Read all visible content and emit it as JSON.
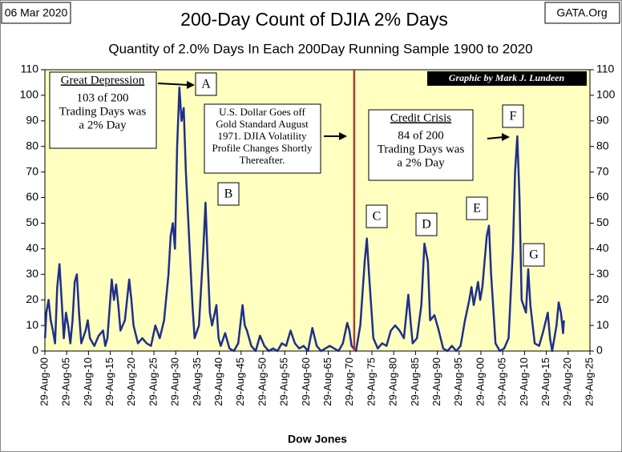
{
  "chart_data": {
    "type": "line",
    "title": "200-Day Count of  DJIA 2% Days",
    "subtitle": "Quantity of 2.0% Days In Each 200Day Running Sample 1900 to 2020",
    "date_label": "06 Mar 2020",
    "source": "GATA.Org",
    "credit": "Graphic by Mark J. Lundeen",
    "x_label": "Dow Jones",
    "color": "#1f2f8a",
    "background": "#ffffc0",
    "grid": false,
    "vline": {
      "value": 1971.6,
      "color": "#b03a2e"
    },
    "ylim": [
      0,
      110
    ],
    "yticks": [
      0,
      10,
      20,
      30,
      40,
      50,
      60,
      70,
      80,
      90,
      100,
      110
    ],
    "xlim": [
      1900.66,
      2025.66
    ],
    "xticks": [
      {
        "value": 1900.66,
        "label": "29-Aug-00"
      },
      {
        "value": 1905.66,
        "label": "29-Aug-05"
      },
      {
        "value": 1910.66,
        "label": "29-Aug-10"
      },
      {
        "value": 1915.66,
        "label": "29-Aug-15"
      },
      {
        "value": 1920.66,
        "label": "29-Aug-20"
      },
      {
        "value": 1925.66,
        "label": "29-Aug-25"
      },
      {
        "value": 1930.66,
        "label": "29-Aug-30"
      },
      {
        "value": 1935.66,
        "label": "29-Aug-35"
      },
      {
        "value": 1940.66,
        "label": "29-Aug-40"
      },
      {
        "value": 1945.66,
        "label": "29-Aug-45"
      },
      {
        "value": 1950.66,
        "label": "29-Aug-50"
      },
      {
        "value": 1955.66,
        "label": "29-Aug-55"
      },
      {
        "value": 1960.66,
        "label": "29-Aug-60"
      },
      {
        "value": 1965.66,
        "label": "29-Aug-65"
      },
      {
        "value": 1970.66,
        "label": "29-Aug-70"
      },
      {
        "value": 1975.66,
        "label": "29-Aug-75"
      },
      {
        "value": 1980.66,
        "label": "29-Aug-80"
      },
      {
        "value": 1985.66,
        "label": "29-Aug-85"
      },
      {
        "value": 1990.66,
        "label": "29-Aug-90"
      },
      {
        "value": 1995.66,
        "label": "29-Aug-95"
      },
      {
        "value": 2000.66,
        "label": "29-Aug-00"
      },
      {
        "value": 2005.66,
        "label": "29-Aug-05"
      },
      {
        "value": 2010.66,
        "label": "29-Aug-10"
      },
      {
        "value": 2015.66,
        "label": "29-Aug-15"
      },
      {
        "value": 2020.66,
        "label": "29-Aug-20"
      },
      {
        "value": 2025.66,
        "label": "29-Aug-25"
      }
    ],
    "x": [
      1900.7,
      1901,
      1901.5,
      1902,
      1902.5,
      1903,
      1903.5,
      1904,
      1904.5,
      1905,
      1905.5,
      1906,
      1906.5,
      1907,
      1907.5,
      1908,
      1908.5,
      1909,
      1910,
      1910.5,
      1911,
      1912,
      1913,
      1914,
      1914.5,
      1915,
      1916,
      1916.5,
      1917,
      1917.5,
      1918,
      1919,
      1920,
      1920.5,
      1921,
      1922,
      1923,
      1924,
      1925,
      1926,
      1927,
      1928,
      1929,
      1929.5,
      1930,
      1930.5,
      1931,
      1931.5,
      1932,
      1932.5,
      1933,
      1934,
      1934.5,
      1935,
      1936,
      1937,
      1937.5,
      1938,
      1938.5,
      1939,
      1940,
      1940.5,
      1941,
      1942,
      1943,
      1944,
      1945,
      1946,
      1946.5,
      1947,
      1948,
      1949,
      1950,
      1951,
      1952,
      1953,
      1954,
      1955,
      1956,
      1957,
      1958,
      1959,
      1960,
      1961,
      1962,
      1963,
      1964,
      1965,
      1966,
      1967,
      1968,
      1969,
      1970,
      1970.5,
      1971,
      1972,
      1973,
      1974,
      1974.5,
      1975,
      1976,
      1977,
      1978,
      1979,
      1980,
      1981,
      1982,
      1983,
      1984,
      1984.5,
      1985,
      1986,
      1987,
      1987.7,
      1988.5,
      1989,
      1990,
      1991,
      1992,
      1993,
      1994,
      1995,
      1996,
      1997,
      1998,
      1998.5,
      1999,
      2000,
      2000.5,
      2001,
      2002,
      2002.5,
      2003,
      2004,
      2005,
      2006,
      2007,
      2008,
      2008.5,
      2009,
      2009.5,
      2010,
      2011,
      2011.5,
      2012,
      2013,
      2014,
      2015,
      2016,
      2016.5,
      2017,
      2018,
      2018.5,
      2019,
      2019.5,
      2019.7
    ],
    "values": [
      5,
      15,
      20,
      12,
      8,
      3,
      25,
      34,
      20,
      5,
      15,
      10,
      3,
      12,
      27,
      30,
      15,
      3,
      8,
      12,
      5,
      2,
      6,
      8,
      2,
      5,
      28,
      20,
      26,
      18,
      8,
      12,
      28,
      20,
      10,
      3,
      5,
      3,
      2,
      10,
      5,
      12,
      30,
      45,
      50,
      40,
      80,
      103,
      90,
      95,
      70,
      35,
      18,
      5,
      10,
      40,
      58,
      35,
      15,
      10,
      18,
      5,
      2,
      7,
      1,
      0,
      3,
      18,
      10,
      8,
      2,
      0,
      6,
      2,
      0,
      1,
      0,
      3,
      2,
      8,
      3,
      1,
      2,
      0,
      9,
      2,
      0,
      1,
      2,
      1,
      0,
      3,
      11,
      8,
      2,
      0,
      10,
      35,
      44,
      30,
      5,
      1,
      3,
      2,
      8,
      10,
      8,
      5,
      22,
      12,
      3,
      5,
      18,
      42,
      35,
      12,
      14,
      8,
      1,
      0,
      2,
      0,
      2,
      12,
      20,
      25,
      18,
      27,
      20,
      25,
      45,
      49,
      30,
      3,
      0,
      1,
      5,
      40,
      70,
      84,
      60,
      20,
      15,
      32,
      18,
      3,
      2,
      8,
      15,
      5,
      0,
      10,
      19,
      15,
      7,
      12
    ],
    "letters": [
      "A",
      "B",
      "C",
      "D",
      "E",
      "F",
      "G"
    ],
    "annotations": [
      {
        "title": "Great Depression",
        "lines": [
          "103 of 200",
          "Trading Days was",
          "a 2% Day"
        ]
      },
      {
        "lines": [
          "U.S. Dollar Goes off",
          "Gold Standard August",
          "1971.  DJIA Volatility",
          "Profile Changes Shortly",
          "Thereafter."
        ]
      },
      {
        "title": "Credit Crisis",
        "lines": [
          "84 of 200",
          "Trading Days was",
          "a 2% Day"
        ]
      }
    ]
  }
}
